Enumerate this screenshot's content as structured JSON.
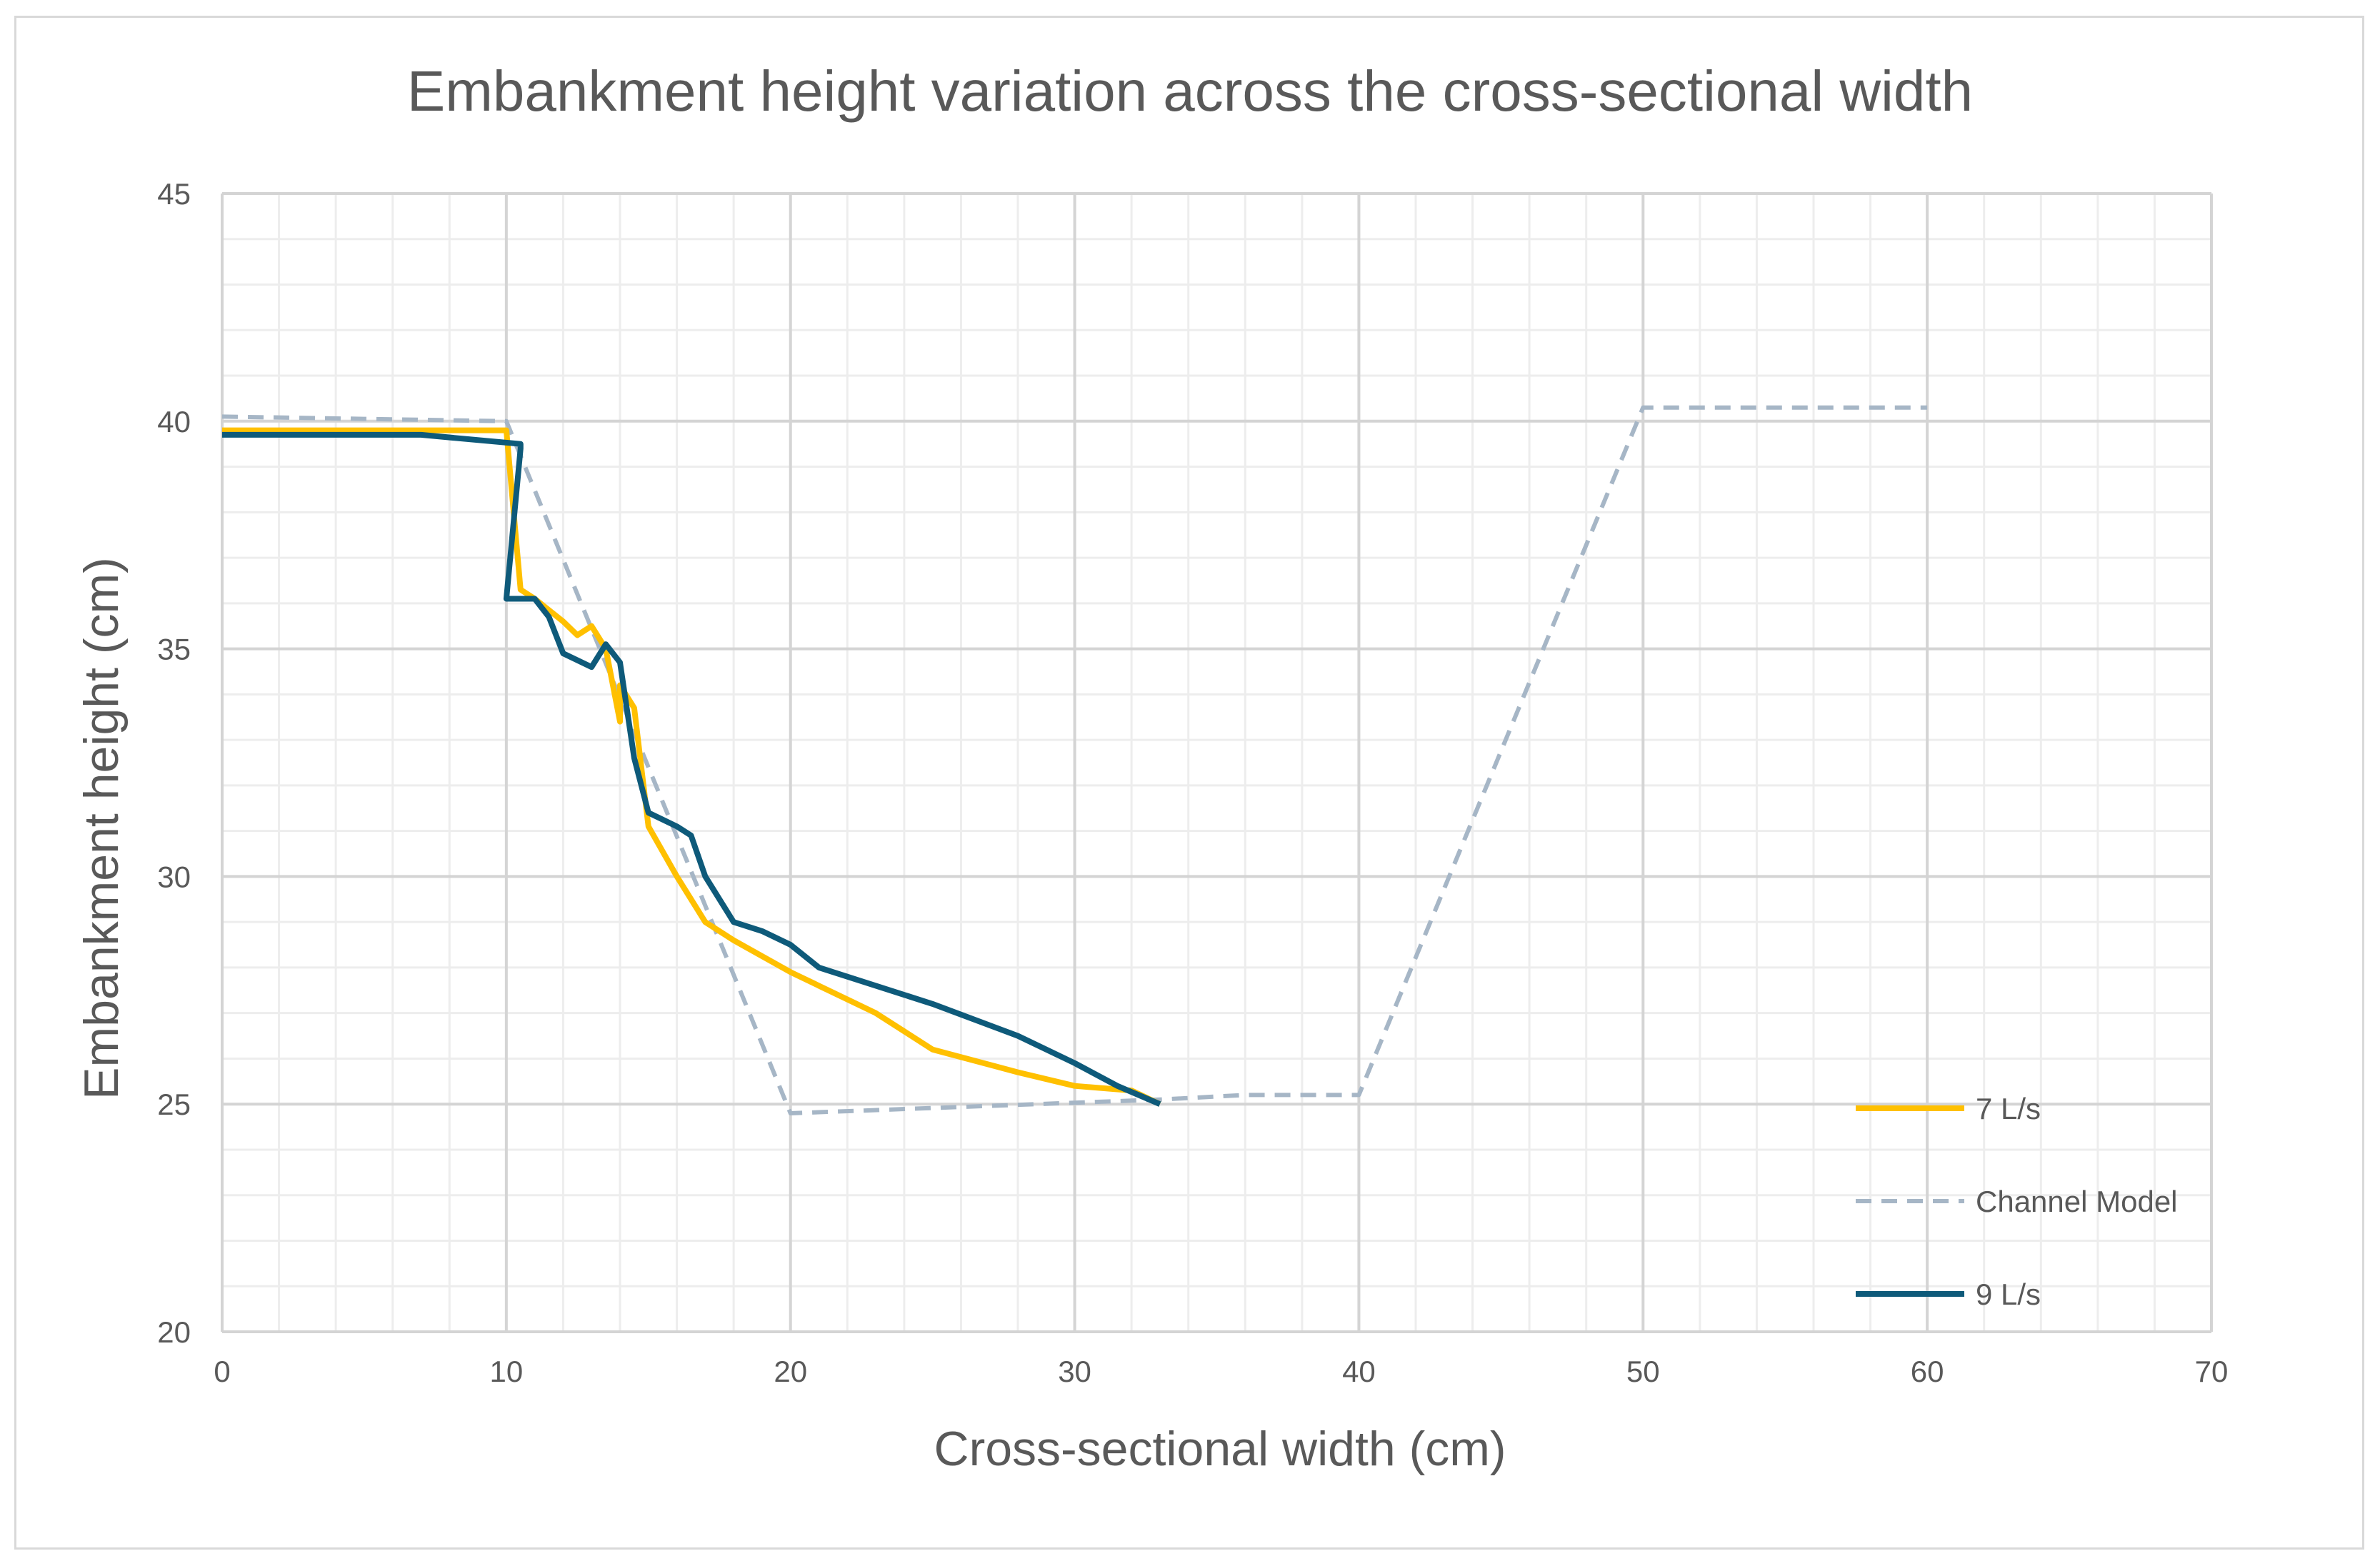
{
  "chart_data": {
    "type": "line",
    "title": "Embankment height variation across the cross-sectional width",
    "xlabel": "Cross-sectional width (cm)",
    "ylabel": "Embankment height (cm)",
    "xlim": [
      0,
      70
    ],
    "ylim": [
      20,
      45
    ],
    "x_ticks": [
      0,
      10,
      20,
      30,
      40,
      50,
      60,
      70
    ],
    "y_ticks": [
      20,
      25,
      30,
      35,
      40,
      45
    ],
    "x_tick_labels": [
      "0",
      "10",
      "20",
      "30",
      "40",
      "50",
      "60",
      "70"
    ],
    "y_tick_labels": [
      "20",
      "25",
      "30",
      "35",
      "40",
      "45"
    ],
    "grid": true,
    "legend_position": "right",
    "series": [
      {
        "name": "7 L/s",
        "color": "#FFC000",
        "dash": "solid",
        "points": [
          [
            0,
            39.8
          ],
          [
            10,
            39.8
          ],
          [
            10.5,
            36.3
          ],
          [
            11,
            36.1
          ],
          [
            12,
            35.6
          ],
          [
            12.5,
            35.3
          ],
          [
            13,
            35.5
          ],
          [
            13.5,
            35.0
          ],
          [
            14,
            33.4
          ],
          [
            14,
            34.2
          ],
          [
            14.5,
            33.7
          ],
          [
            15,
            31.1
          ],
          [
            16,
            30.0
          ],
          [
            17,
            29.0
          ],
          [
            18,
            28.6
          ],
          [
            20,
            27.9
          ],
          [
            23,
            27.0
          ],
          [
            25,
            26.2
          ],
          [
            28,
            25.7
          ],
          [
            30,
            25.4
          ],
          [
            32,
            25.3
          ],
          [
            33,
            25.0
          ]
        ]
      },
      {
        "name": "Channel Model",
        "color": "#A6B6C6",
        "dash": "dashed",
        "points": [
          [
            0,
            40.1
          ],
          [
            10,
            40.0
          ],
          [
            20,
            24.8
          ],
          [
            33,
            25.1
          ],
          [
            36,
            25.2
          ],
          [
            40,
            25.2
          ],
          [
            50,
            40.3
          ],
          [
            60,
            40.3
          ]
        ]
      },
      {
        "name": "9 L/s",
        "color": "#0E5A7A",
        "dash": "solid",
        "points": [
          [
            0,
            39.7
          ],
          [
            7,
            39.7
          ],
          [
            10.5,
            39.5
          ],
          [
            10.5,
            39.4
          ],
          [
            10,
            36.1
          ],
          [
            11,
            36.1
          ],
          [
            11.5,
            35.7
          ],
          [
            12,
            34.9
          ],
          [
            13,
            34.6
          ],
          [
            13.5,
            35.1
          ],
          [
            14,
            34.7
          ],
          [
            14.5,
            32.6
          ],
          [
            15,
            31.4
          ],
          [
            16,
            31.1
          ],
          [
            16.5,
            30.9
          ],
          [
            17,
            30.0
          ],
          [
            18,
            29.0
          ],
          [
            19,
            28.8
          ],
          [
            20,
            28.5
          ],
          [
            21,
            28.0
          ],
          [
            25,
            27.2
          ],
          [
            28,
            26.5
          ],
          [
            30,
            25.9
          ],
          [
            31.5,
            25.4
          ],
          [
            33,
            25.0
          ]
        ]
      }
    ]
  }
}
